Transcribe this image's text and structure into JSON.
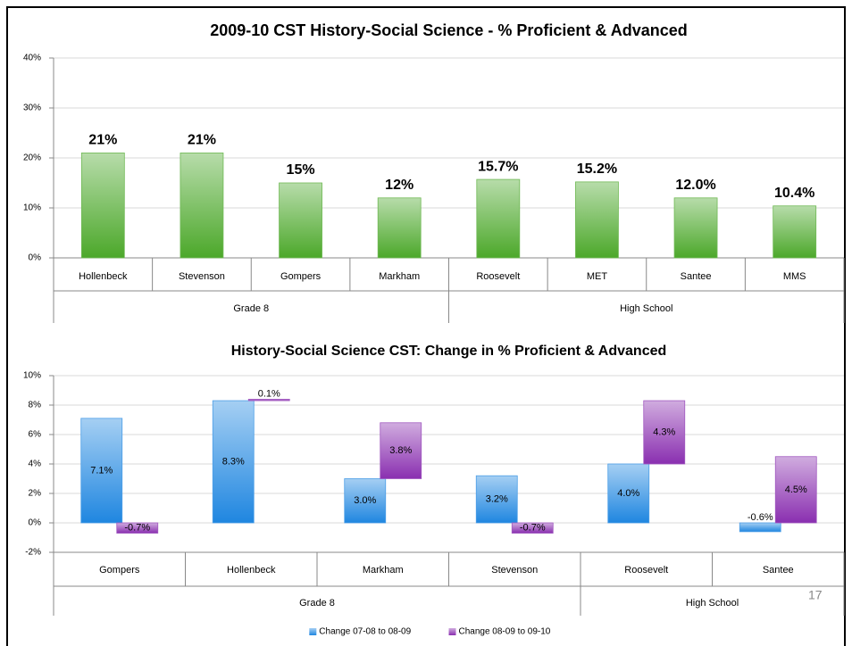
{
  "page_number": "17",
  "chart_data": [
    {
      "type": "bar",
      "title": "2009-10 CST History-Social Science - % Proficient & Advanced",
      "categories": [
        "Hollenbeck",
        "Stevenson",
        "Gompers",
        "Markham",
        "Roosevelt",
        "MET",
        "Santee",
        "MMS"
      ],
      "groups": [
        {
          "label": "Grade 8",
          "count": 4
        },
        {
          "label": "High School",
          "count": 4
        }
      ],
      "values": [
        21,
        21,
        15,
        12,
        15.7,
        15.2,
        12.0,
        10.4
      ],
      "value_labels": [
        "21%",
        "21%",
        "15%",
        "12%",
        "15.7%",
        "15.2%",
        "12.0%",
        "10.4%"
      ],
      "color": "#4ca82a",
      "ylim": [
        0,
        40
      ],
      "yticks": [
        {
          "value": 0,
          "label": "0%"
        },
        {
          "value": 10,
          "label": "10%"
        },
        {
          "value": 20,
          "label": "20%"
        },
        {
          "value": 30,
          "label": "30%"
        },
        {
          "value": 40,
          "label": "40%"
        }
      ],
      "grid": true
    },
    {
      "type": "bar",
      "stacked": true,
      "title": "History-Social Science CST: Change in % Proficient & Advanced",
      "categories": [
        "Gompers",
        "Hollenbeck",
        "Markham",
        "Stevenson",
        "Roosevelt",
        "Santee"
      ],
      "groups": [
        {
          "label": "Grade 8",
          "count": 4
        },
        {
          "label": "High School",
          "count": 2
        }
      ],
      "series": [
        {
          "name": "Change 07-08 to 08-09",
          "color": "#1f86e0",
          "values": [
            7.1,
            8.3,
            3.0,
            3.2,
            4.0,
            -0.6
          ],
          "value_labels": [
            "7.1%",
            "8.3%",
            "3.0%",
            "3.2%",
            "4.0%",
            "-0.6%"
          ]
        },
        {
          "name": "Change 08-09 to 09-10",
          "color": "#8a2fb0",
          "values": [
            -0.7,
            0.1,
            3.8,
            -0.7,
            4.3,
            4.5
          ],
          "value_labels": [
            "-0.7%",
            "0.1%",
            "3.8%",
            "-0.7%",
            "4.3%",
            "4.5%"
          ]
        }
      ],
      "ylim": [
        -2,
        10
      ],
      "yticks": [
        {
          "value": -2,
          "label": "-2%"
        },
        {
          "value": 0,
          "label": "0%"
        },
        {
          "value": 2,
          "label": "2%"
        },
        {
          "value": 4,
          "label": "4%"
        },
        {
          "value": 6,
          "label": "6%"
        },
        {
          "value": 8,
          "label": "8%"
        },
        {
          "value": 10,
          "label": "10%"
        }
      ],
      "grid": true,
      "legend": "bottom"
    }
  ]
}
